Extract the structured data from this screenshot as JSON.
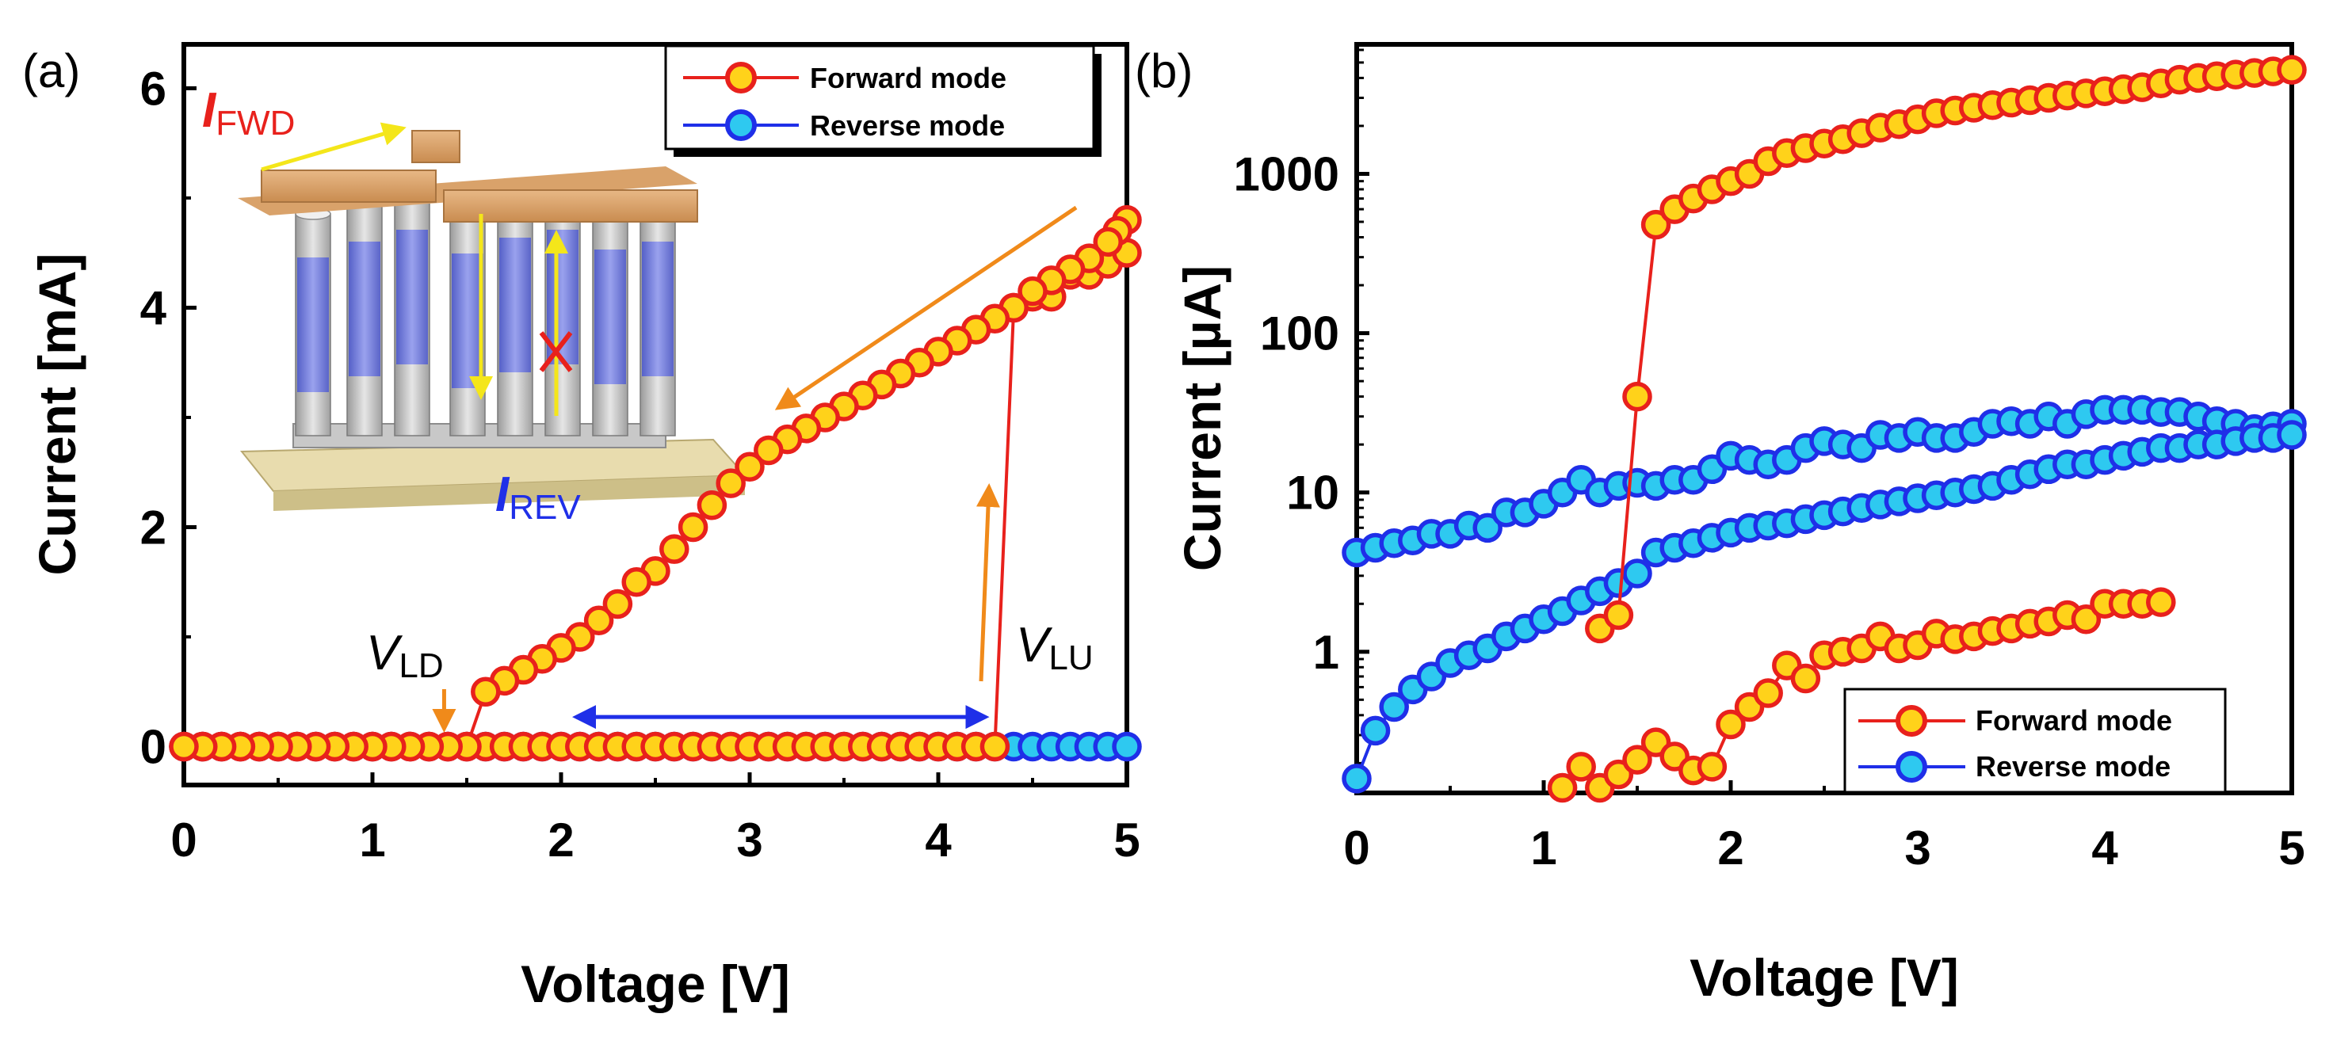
{
  "chart_data": [
    {
      "panel_label": "(a)",
      "type": "scatter",
      "xlabel": "Voltage [V]",
      "ylabel": "Current [mA]",
      "xlim": [
        0,
        5
      ],
      "ylim": [
        -0.35,
        6.4
      ],
      "yscale": "linear",
      "xticks": [
        0,
        1,
        2,
        3,
        4,
        5
      ],
      "xtick_labels": [
        "0",
        "1",
        "2",
        "3",
        "4",
        "5"
      ],
      "yticks": [
        0,
        2,
        4,
        6
      ],
      "ytick_labels": [
        "0",
        "2",
        "4",
        "6"
      ],
      "legend": {
        "placement": "top-right",
        "entries": [
          "Forward mode",
          "Reverse mode"
        ]
      },
      "series": [
        {
          "name": "Forward mode (up sweep)",
          "legend_entry": "Forward mode",
          "color": "#e8211c",
          "fill": "#ffd21a",
          "x": [
            0,
            0.1,
            0.2,
            0.3,
            0.4,
            0.5,
            0.6,
            0.7,
            0.8,
            0.9,
            1.0,
            1.1,
            1.2,
            1.3,
            1.4,
            1.5,
            1.6,
            1.7,
            1.8,
            1.9,
            2.0,
            2.1,
            2.2,
            2.3,
            2.4,
            2.5,
            2.6,
            2.7,
            2.8,
            2.9,
            3.0,
            3.1,
            3.2,
            3.3,
            3.4,
            3.5,
            3.6,
            3.7,
            3.8,
            3.9,
            4.0,
            4.1,
            4.2,
            4.3,
            4.4,
            4.5,
            4.6,
            4.7,
            4.8,
            4.9,
            5.0
          ],
          "y": [
            0,
            0,
            0,
            0,
            0,
            0,
            0,
            0,
            0,
            0,
            0,
            0,
            0,
            0,
            0,
            0,
            0,
            0,
            0,
            0,
            0,
            0,
            0,
            0,
            0,
            0,
            0,
            0,
            0,
            0,
            0,
            0,
            0,
            0,
            0,
            0,
            0,
            0,
            0,
            0,
            0,
            0,
            0,
            0,
            4.0,
            4.1,
            4.1,
            4.3,
            4.3,
            4.4,
            4.5
          ]
        },
        {
          "name": "Forward mode (down sweep)",
          "legend_entry": "Forward mode",
          "color": "#e8211c",
          "fill": "#ffd21a",
          "x": [
            5.0,
            4.95,
            4.9,
            4.8,
            4.7,
            4.6,
            4.5,
            4.4,
            4.3,
            4.2,
            4.1,
            4.0,
            3.9,
            3.8,
            3.7,
            3.6,
            3.5,
            3.4,
            3.3,
            3.2,
            3.1,
            3.0,
            2.9,
            2.8,
            2.7,
            2.6,
            2.5,
            2.4,
            2.3,
            2.2,
            2.1,
            2.0,
            1.9,
            1.8,
            1.7,
            1.6,
            1.5,
            1.4,
            1.3,
            1.2,
            1.1,
            1.0,
            0.9,
            0.8,
            0.7,
            0.6,
            0.5,
            0.4,
            0.3,
            0.2,
            0.1,
            0
          ],
          "y": [
            4.8,
            4.7,
            4.6,
            4.45,
            4.35,
            4.25,
            4.15,
            4.0,
            3.9,
            3.8,
            3.7,
            3.6,
            3.5,
            3.4,
            3.3,
            3.2,
            3.1,
            3.0,
            2.9,
            2.8,
            2.7,
            2.55,
            2.4,
            2.2,
            2.0,
            1.8,
            1.6,
            1.5,
            1.3,
            1.15,
            1.0,
            0.9,
            0.8,
            0.7,
            0.6,
            0.5,
            0,
            0,
            0,
            0,
            0,
            0,
            0,
            0,
            0,
            0,
            0,
            0,
            0,
            0,
            0,
            0
          ]
        },
        {
          "name": "Reverse mode",
          "legend_entry": "Reverse mode",
          "color": "#1f2fe8",
          "fill": "#2ec9f0",
          "x": [
            0,
            0.1,
            0.2,
            0.3,
            0.4,
            0.5,
            0.6,
            0.7,
            0.8,
            0.9,
            1.0,
            1.1,
            1.2,
            1.3,
            1.4,
            1.5,
            1.6,
            1.7,
            1.8,
            1.9,
            2.0,
            2.1,
            2.2,
            2.3,
            2.4,
            2.5,
            2.6,
            2.7,
            2.8,
            2.9,
            3.0,
            3.1,
            3.2,
            3.3,
            3.4,
            3.5,
            3.6,
            3.7,
            3.8,
            3.9,
            4.0,
            4.1,
            4.2,
            4.3,
            4.4,
            4.5,
            4.6,
            4.7,
            4.8,
            4.9,
            5.0
          ],
          "y": [
            0,
            0,
            0,
            0,
            0,
            0,
            0,
            0,
            0,
            0,
            0,
            0,
            0,
            0,
            0,
            0,
            0,
            0,
            0,
            0,
            0,
            0,
            0,
            0,
            0,
            0,
            0,
            0,
            0,
            0,
            0,
            0,
            0,
            0,
            0,
            0,
            0,
            0,
            0,
            0,
            0,
            0,
            0,
            0,
            0,
            0,
            0,
            0,
            0,
            0,
            0
          ]
        }
      ],
      "annotations": {
        "v_ld": {
          "main": "V",
          "sub": "LD",
          "x": 1.38
        },
        "v_lu": {
          "main": "V",
          "sub": "LU",
          "x": 4.3
        },
        "window_arrow": {
          "from": 2.08,
          "to": 4.25,
          "y": 0.27
        },
        "i_fwd": {
          "main": "I",
          "sub": "FWD"
        },
        "i_rev": {
          "main": "I",
          "sub": "REV"
        }
      }
    },
    {
      "panel_label": "(b)",
      "type": "scatter",
      "xlabel": "Voltage [V]",
      "ylabel": "Current [µA]",
      "xlim": [
        0,
        5
      ],
      "ylim": [
        0.13,
        6500
      ],
      "yscale": "log",
      "xticks": [
        0,
        1,
        2,
        3,
        4,
        5
      ],
      "xtick_labels": [
        "0",
        "1",
        "2",
        "3",
        "4",
        "5"
      ],
      "yticks": [
        1,
        10,
        100,
        1000
      ],
      "ytick_labels": [
        "1",
        "10",
        "100",
        "1000"
      ],
      "legend": {
        "placement": "bottom-right",
        "entries": [
          "Forward mode",
          "Reverse mode"
        ]
      },
      "series": [
        {
          "name": "Forward mode (low state)",
          "legend_entry": "Forward mode",
          "color": "#e8211c",
          "fill": "#ffd21a",
          "x": [
            1.1,
            1.2,
            1.3,
            1.4,
            1.5,
            1.6,
            1.7,
            1.8,
            1.9,
            2.0,
            2.1,
            2.2,
            2.3,
            2.4,
            2.5,
            2.6,
            2.7,
            2.8,
            2.9,
            3.0,
            3.1,
            3.2,
            3.3,
            3.4,
            3.5,
            3.6,
            3.7,
            3.8,
            3.9,
            4.0,
            4.1,
            4.2,
            4.3
          ],
          "y": [
            0.14,
            0.19,
            0.14,
            0.17,
            0.21,
            0.27,
            0.22,
            0.18,
            0.19,
            0.35,
            0.45,
            0.55,
            0.82,
            0.68,
            0.95,
            1.0,
            1.05,
            1.25,
            1.05,
            1.1,
            1.3,
            1.2,
            1.25,
            1.35,
            1.4,
            1.5,
            1.55,
            1.7,
            1.6,
            2.0,
            2.0,
            2.0,
            2.05
          ]
        },
        {
          "name": "Forward mode (high state)",
          "legend_entry": "Forward mode",
          "color": "#e8211c",
          "fill": "#ffd21a",
          "x": [
            1.3,
            1.4,
            1.5,
            1.6,
            1.7,
            1.8,
            1.9,
            2.0,
            2.1,
            2.2,
            2.3,
            2.4,
            2.5,
            2.6,
            2.7,
            2.8,
            2.9,
            3.0,
            3.1,
            3.2,
            3.3,
            3.4,
            3.5,
            3.6,
            3.7,
            3.8,
            3.9,
            4.0,
            4.1,
            4.2,
            4.3,
            4.4,
            4.5,
            4.6,
            4.7,
            4.8,
            4.9,
            5.0
          ],
          "y": [
            1.4,
            1.7,
            40,
            480,
            600,
            700,
            800,
            900,
            1000,
            1200,
            1350,
            1450,
            1550,
            1650,
            1800,
            1950,
            2050,
            2200,
            2400,
            2500,
            2600,
            2700,
            2800,
            2900,
            3000,
            3100,
            3200,
            3300,
            3400,
            3500,
            3700,
            3900,
            4000,
            4100,
            4200,
            4300,
            4400,
            4500
          ]
        },
        {
          "name": "Reverse mode (upper branch)",
          "legend_entry": "Reverse mode",
          "color": "#1f2fe8",
          "fill": "#2ec9f0",
          "x": [
            0,
            0.1,
            0.2,
            0.3,
            0.4,
            0.5,
            0.6,
            0.7,
            0.8,
            0.9,
            1.0,
            1.1,
            1.2,
            1.3,
            1.4,
            1.5,
            1.6,
            1.7,
            1.8,
            1.9,
            2.0,
            2.1,
            2.2,
            2.3,
            2.4,
            2.5,
            2.6,
            2.7,
            2.8,
            2.9,
            3.0,
            3.1,
            3.2,
            3.3,
            3.4,
            3.5,
            3.6,
            3.7,
            3.8,
            3.9,
            4.0,
            4.1,
            4.2,
            4.3,
            4.4,
            4.5,
            4.6,
            4.7,
            4.8,
            4.9,
            5.0
          ],
          "y": [
            4.2,
            4.5,
            4.8,
            5.0,
            5.5,
            5.5,
            6.2,
            6.0,
            7.5,
            7.5,
            8.5,
            10,
            12,
            10,
            11,
            11.5,
            11,
            12,
            12,
            14,
            17,
            16,
            15,
            16,
            19,
            21,
            20,
            19,
            23,
            22,
            24,
            22,
            22,
            24,
            27,
            28,
            27,
            30,
            27,
            31,
            33,
            33,
            33,
            32,
            32,
            30,
            28,
            27,
            25,
            26,
            27
          ]
        },
        {
          "name": "Reverse mode (lower branch)",
          "legend_entry": "Reverse mode",
          "color": "#1f2fe8",
          "fill": "#2ec9f0",
          "x": [
            0,
            0.1,
            0.2,
            0.3,
            0.4,
            0.5,
            0.6,
            0.7,
            0.8,
            0.9,
            1.0,
            1.1,
            1.2,
            1.3,
            1.4,
            1.5,
            1.6,
            1.7,
            1.8,
            1.9,
            2.0,
            2.1,
            2.2,
            2.3,
            2.4,
            2.5,
            2.6,
            2.7,
            2.8,
            2.9,
            3.0,
            3.1,
            3.2,
            3.3,
            3.4,
            3.5,
            3.6,
            3.7,
            3.8,
            3.9,
            4.0,
            4.1,
            4.2,
            4.3,
            4.4,
            4.5,
            4.6,
            4.7,
            4.8,
            4.9,
            5.0
          ],
          "y": [
            0.16,
            0.32,
            0.45,
            0.58,
            0.7,
            0.85,
            0.95,
            1.05,
            1.25,
            1.4,
            1.6,
            1.8,
            2.1,
            2.4,
            2.7,
            3.1,
            4.2,
            4.5,
            4.8,
            5.2,
            5.6,
            6.0,
            6.2,
            6.4,
            6.8,
            7.2,
            7.6,
            8.0,
            8.4,
            8.8,
            9.2,
            9.6,
            10,
            10.5,
            11,
            12,
            13,
            14,
            15,
            15,
            16,
            17,
            18,
            19,
            19,
            20,
            20,
            21,
            22,
            22,
            23
          ]
        }
      ]
    }
  ]
}
